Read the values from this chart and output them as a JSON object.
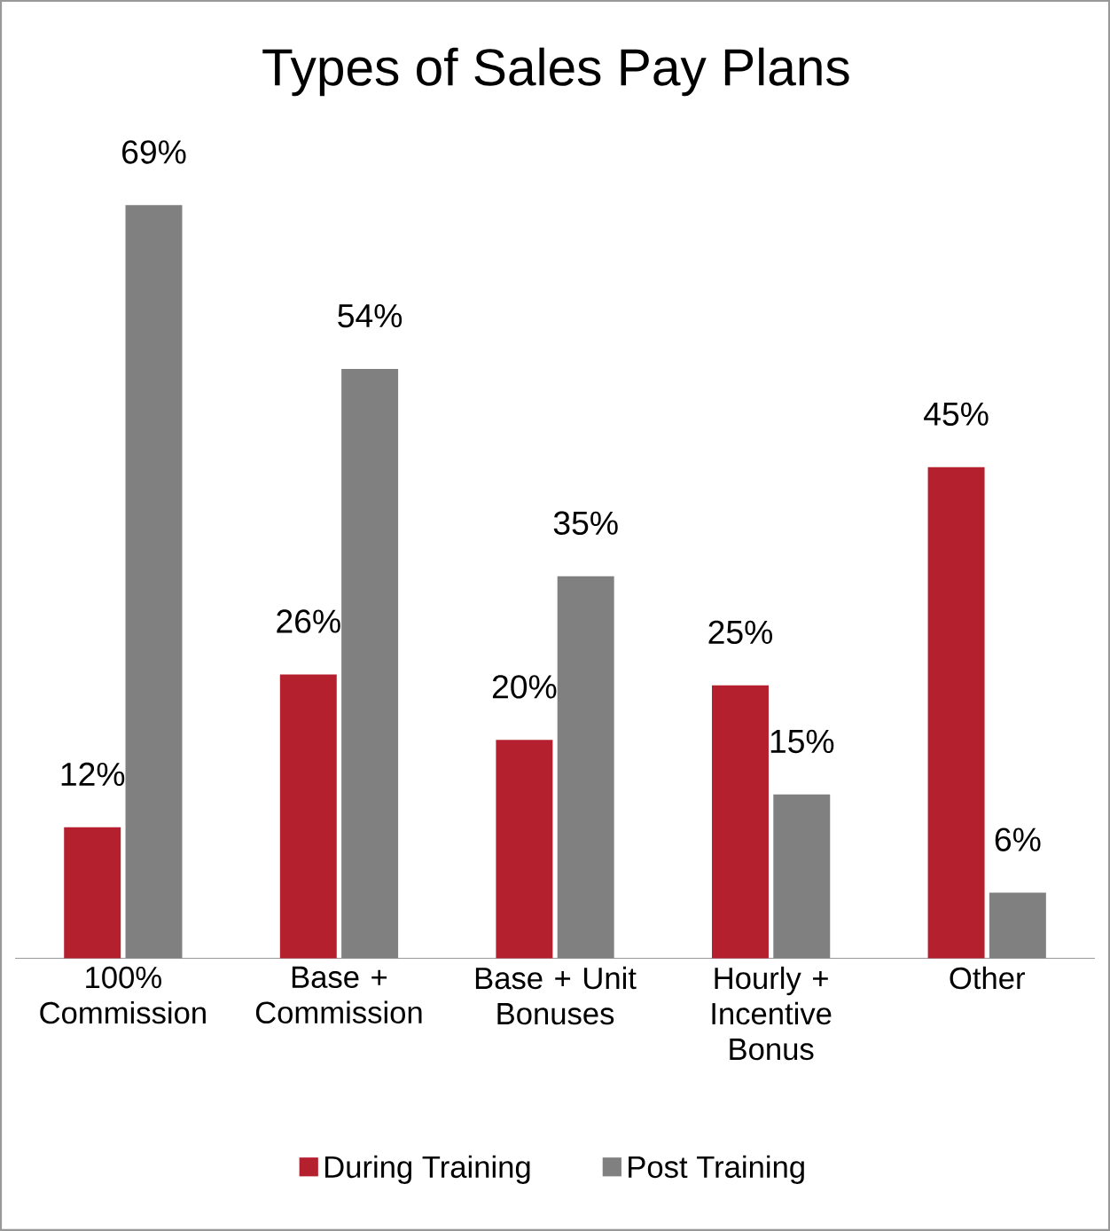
{
  "chart_data": {
    "type": "bar",
    "title": "Types of Sales Pay Plans",
    "categories": [
      "100% Commission",
      "Base + Commission",
      "Base + Unit Bonuses",
      "Hourly + Incentive Bonus",
      "Other"
    ],
    "series": [
      {
        "name": "During Training",
        "color": "#b5202e",
        "values": [
          12,
          26,
          20,
          25,
          45
        ],
        "value_labels": [
          "12%",
          "26%",
          "20%",
          "25%",
          "45%"
        ]
      },
      {
        "name": "Post Training",
        "color": "#808080",
        "values": [
          69,
          54,
          35,
          15,
          6
        ],
        "value_labels": [
          "69%",
          "54%",
          "35%",
          "15%",
          "6%"
        ]
      }
    ],
    "legend": "bottom",
    "grid": false
  }
}
